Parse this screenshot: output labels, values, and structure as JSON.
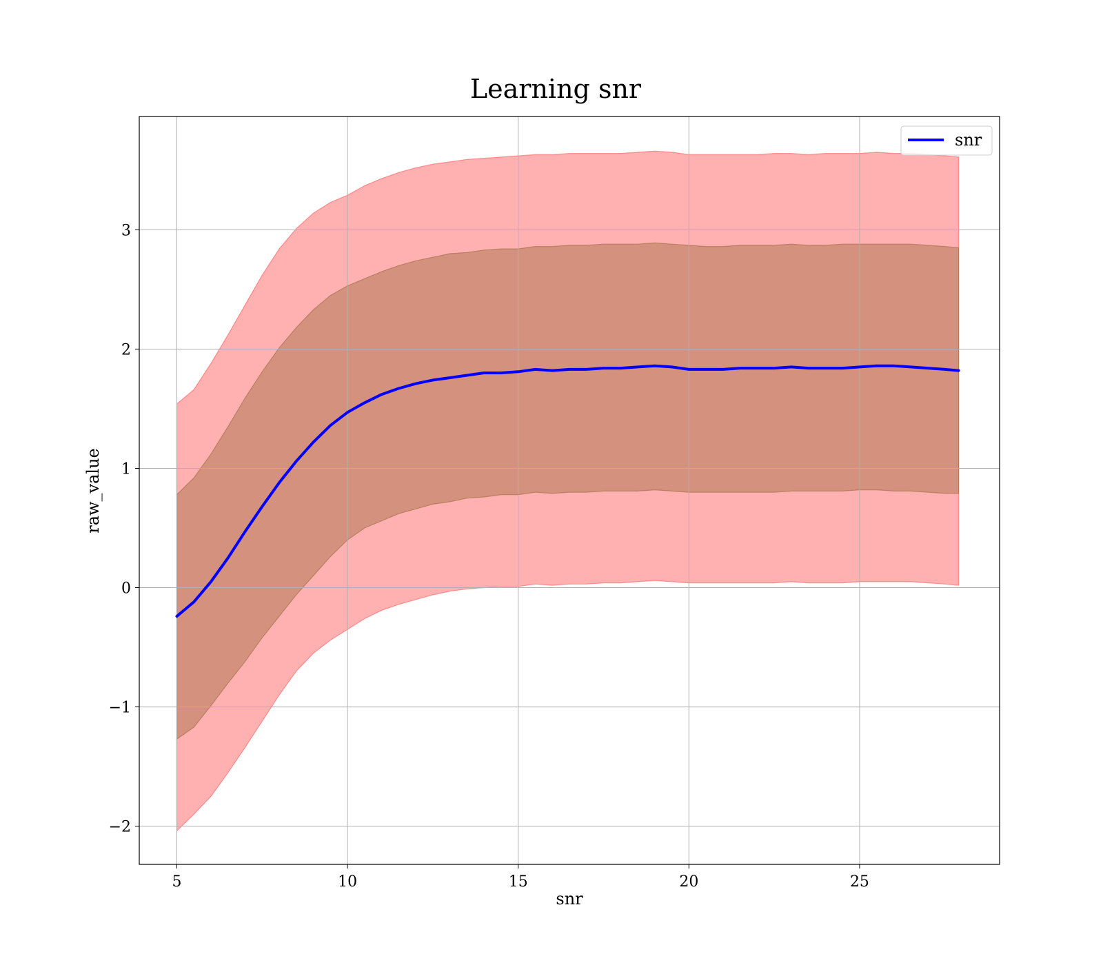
{
  "chart_data": {
    "type": "line",
    "title": "Learning snr",
    "xlabel": "snr",
    "ylabel": "raw_value",
    "xlim": [
      3.9,
      29.1
    ],
    "ylim": [
      -2.32,
      3.95
    ],
    "xticks": [
      5,
      10,
      15,
      20,
      25
    ],
    "yticks": [
      -2,
      -1,
      0,
      1,
      2,
      3
    ],
    "ytick_labels": [
      "−2",
      "−1",
      "0",
      "1",
      "2",
      "3"
    ],
    "grid": true,
    "legend": {
      "position": "top-right",
      "entries": [
        "snr"
      ]
    },
    "colors": {
      "line": "#0000ff",
      "outer_band": "#ff5a5a",
      "inner_band": "#b07a55"
    },
    "x": [
      5,
      5.5,
      6,
      6.5,
      7,
      7.5,
      8,
      8.5,
      9,
      9.5,
      10,
      10.5,
      11,
      11.5,
      12,
      12.5,
      13,
      13.5,
      14,
      14.5,
      15,
      15.5,
      16,
      16.5,
      17,
      17.5,
      18,
      18.5,
      19,
      19.5,
      20,
      20.5,
      21,
      21.5,
      22,
      22.5,
      23,
      23.5,
      24,
      24.5,
      25,
      25.5,
      26,
      26.5,
      27,
      27.5,
      27.9
    ],
    "series": [
      {
        "name": "snr",
        "values": [
          -0.24,
          -0.12,
          0.05,
          0.25,
          0.47,
          0.68,
          0.88,
          1.06,
          1.22,
          1.36,
          1.47,
          1.55,
          1.62,
          1.67,
          1.71,
          1.74,
          1.76,
          1.78,
          1.8,
          1.8,
          1.81,
          1.83,
          1.82,
          1.83,
          1.83,
          1.84,
          1.84,
          1.85,
          1.86,
          1.85,
          1.83,
          1.83,
          1.83,
          1.84,
          1.84,
          1.84,
          1.85,
          1.84,
          1.84,
          1.84,
          1.85,
          1.86,
          1.86,
          1.85,
          1.84,
          1.83,
          1.82
        ],
        "inner_upper": [
          0.78,
          0.92,
          1.12,
          1.35,
          1.59,
          1.81,
          2.01,
          2.18,
          2.33,
          2.45,
          2.53,
          2.59,
          2.65,
          2.7,
          2.74,
          2.77,
          2.8,
          2.81,
          2.83,
          2.84,
          2.84,
          2.86,
          2.86,
          2.87,
          2.87,
          2.88,
          2.88,
          2.88,
          2.89,
          2.88,
          2.87,
          2.86,
          2.86,
          2.87,
          2.87,
          2.87,
          2.88,
          2.87,
          2.87,
          2.88,
          2.88,
          2.88,
          2.88,
          2.88,
          2.87,
          2.86,
          2.85
        ],
        "inner_lower": [
          -1.27,
          -1.17,
          -0.99,
          -0.8,
          -0.62,
          -0.42,
          -0.24,
          -0.06,
          0.1,
          0.26,
          0.4,
          0.5,
          0.56,
          0.62,
          0.66,
          0.7,
          0.72,
          0.75,
          0.76,
          0.78,
          0.78,
          0.8,
          0.79,
          0.8,
          0.8,
          0.81,
          0.81,
          0.81,
          0.82,
          0.81,
          0.8,
          0.8,
          0.8,
          0.8,
          0.8,
          0.8,
          0.81,
          0.81,
          0.81,
          0.81,
          0.82,
          0.82,
          0.81,
          0.81,
          0.8,
          0.79,
          0.79
        ],
        "outer_upper": [
          1.54,
          1.66,
          1.88,
          2.12,
          2.37,
          2.62,
          2.84,
          3.01,
          3.14,
          3.23,
          3.29,
          3.37,
          3.43,
          3.48,
          3.52,
          3.55,
          3.57,
          3.59,
          3.6,
          3.61,
          3.62,
          3.63,
          3.63,
          3.64,
          3.64,
          3.64,
          3.64,
          3.65,
          3.66,
          3.65,
          3.63,
          3.63,
          3.63,
          3.63,
          3.63,
          3.64,
          3.64,
          3.63,
          3.64,
          3.64,
          3.64,
          3.65,
          3.64,
          3.64,
          3.63,
          3.62,
          3.61
        ],
        "outer_lower": [
          -2.04,
          -1.9,
          -1.75,
          -1.55,
          -1.34,
          -1.12,
          -0.9,
          -0.7,
          -0.55,
          -0.44,
          -0.35,
          -0.26,
          -0.19,
          -0.14,
          -0.1,
          -0.06,
          -0.03,
          -0.01,
          0.0,
          0.01,
          0.01,
          0.03,
          0.02,
          0.03,
          0.03,
          0.04,
          0.04,
          0.05,
          0.06,
          0.05,
          0.04,
          0.04,
          0.04,
          0.04,
          0.04,
          0.04,
          0.05,
          0.04,
          0.04,
          0.04,
          0.05,
          0.05,
          0.05,
          0.05,
          0.04,
          0.03,
          0.02
        ]
      }
    ]
  }
}
